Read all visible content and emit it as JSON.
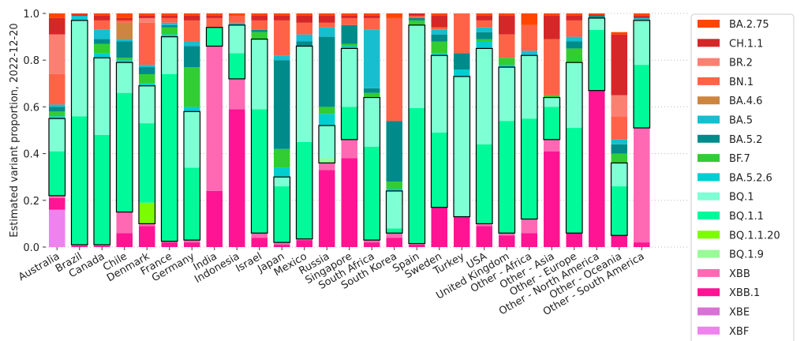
{
  "chart_data": {
    "type": "stacked_bar",
    "ylabel": "Estimated variant proportion, 2022-12-20",
    "categories": [
      "Australia",
      "Brazil",
      "Canada",
      "Chile",
      "Denmark",
      "France",
      "Germany",
      "India",
      "Indonesia",
      "Israel",
      "Japan",
      "Mexico",
      "Russia",
      "Singapore",
      "South Africa",
      "South Korea",
      "Spain",
      "Sweden",
      "Turkey",
      "USA",
      "United Kingdom",
      "Other - Africa",
      "Other - Asia",
      "Other - Europe",
      "Other - North America",
      "Other - Oceania",
      "Other - South America"
    ],
    "ylim": [
      0,
      1
    ],
    "yticks": [
      {
        "value": 0,
        "label": "0.0"
      },
      {
        "value": 0.2,
        "label": "0.2"
      },
      {
        "value": 0.4,
        "label": "0.4"
      },
      {
        "value": 0.6,
        "label": "0.6"
      },
      {
        "value": 0.8,
        "label": "0.8"
      },
      {
        "value": 1,
        "label": "1.0"
      }
    ],
    "grid": true,
    "legend": "right",
    "series": [
      {
        "name": "BA.2.75",
        "color": "#ff4500",
        "values": [
          0.02,
          0.005,
          0.01,
          0.02,
          0.01,
          0.01,
          0.01,
          0.01,
          0.01,
          0.01,
          0.01,
          0.01,
          0.01,
          0.01,
          0.01,
          0.02,
          0,
          0.01,
          0,
          0.01,
          0.01,
          0.05,
          0.01,
          0.01,
          0.005,
          0.01,
          0.01
        ]
      },
      {
        "name": "CH.1.1",
        "color": "#d62728",
        "values": [
          0.07,
          0.005,
          0.02,
          0.01,
          0.01,
          0.01,
          0.02,
          0.01,
          0,
          0.02,
          0.02,
          0.03,
          0.03,
          0.01,
          0.01,
          0,
          0.01,
          0.05,
          0,
          0.02,
          0.08,
          0,
          0.1,
          0.02,
          0.005,
          0.26,
          0.01
        ]
      },
      {
        "name": "BR.2",
        "color": "#fa8072",
        "values": [
          0.17,
          0,
          0,
          0,
          0.02,
          0,
          0,
          0,
          0,
          0,
          0,
          0,
          0,
          0,
          0,
          0,
          0,
          0,
          0,
          0,
          0,
          0,
          0,
          0,
          0,
          0.09,
          0
        ]
      },
      {
        "name": "BN.1",
        "color": "#ff6347",
        "values": [
          0.13,
          0,
          0.04,
          0.01,
          0.18,
          0.02,
          0.09,
          0.04,
          0.03,
          0.04,
          0.15,
          0.05,
          0.02,
          0.03,
          0.05,
          0.44,
          0.01,
          0.01,
          0.17,
          0.03,
          0.1,
          0.11,
          0.24,
          0.07,
          0,
          0.1,
          0
        ]
      },
      {
        "name": "BA.4.6",
        "color": "#cd853f",
        "values": [
          0,
          0,
          0,
          0.07,
          0,
          0,
          0,
          0,
          0,
          0,
          0,
          0,
          0,
          0,
          0,
          0,
          0,
          0,
          0,
          0,
          0,
          0,
          0,
          0,
          0,
          0,
          0
        ]
      },
      {
        "name": "BA.5",
        "color": "#17becf",
        "values": [
          0.01,
          0.01,
          0.04,
          0.01,
          0.01,
          0.01,
          0.02,
          0,
          0.01,
          0,
          0.02,
          0.03,
          0.04,
          0,
          0.25,
          0,
          0,
          0.02,
          0,
          0.02,
          0,
          0.02,
          0,
          0.02,
          0,
          0.02,
          0.01
        ]
      },
      {
        "name": "BA.5.2",
        "color": "#008b8b",
        "values": [
          0.02,
          0,
          0.02,
          0.07,
          0.03,
          0.01,
          0.09,
          0,
          0,
          0.01,
          0.38,
          0.02,
          0.3,
          0.08,
          0.02,
          0.26,
          0.01,
          0.03,
          0.07,
          0.03,
          0,
          0,
          0,
          0.03,
          0.01,
          0.04,
          0
        ]
      },
      {
        "name": "BF.7",
        "color": "#32cd32",
        "values": [
          0.02,
          0,
          0.04,
          0.01,
          0.04,
          0.03,
          0.17,
          0,
          0,
          0.03,
          0.08,
          0,
          0.03,
          0.01,
          0.02,
          0.03,
          0.02,
          0.05,
          0,
          0.01,
          0.03,
          0,
          0.01,
          0.06,
          0,
          0.04,
          0
        ]
      },
      {
        "name": "BA.5.2.6",
        "color": "#00ced1",
        "values": [
          0.01,
          0.01,
          0.02,
          0.01,
          0.01,
          0.01,
          0.02,
          0,
          0,
          0,
          0.04,
          0,
          0.05,
          0.01,
          0,
          0.01,
          0,
          0.01,
          0.03,
          0.03,
          0.01,
          0,
          0,
          0,
          0,
          0,
          0
        ]
      },
      {
        "name": "BQ.1",
        "color": "#7fffd4",
        "outline": true,
        "values": [
          0.14,
          0.41,
          0.33,
          0.13,
          0.16,
          0.16,
          0.24,
          0,
          0.12,
          0.3,
          0.04,
          0.41,
          0.14,
          0.25,
          0.21,
          0.16,
          0.355,
          0.33,
          0.6,
          0.41,
          0.23,
          0.27,
          0.04,
          0.28,
          0.05,
          0.1,
          0.19
        ]
      },
      {
        "name": "BQ.1.1",
        "color": "#00fa9a",
        "outline": true,
        "values": [
          0.19,
          0.55,
          0.47,
          0.51,
          0.34,
          0.715,
          0.31,
          0.08,
          0.11,
          0.53,
          0.24,
          0.415,
          0,
          0.14,
          0.4,
          0.02,
          0.58,
          0.32,
          0,
          0.34,
          0.48,
          0.43,
          0.14,
          0.45,
          0.26,
          0.21,
          0.27
        ]
      },
      {
        "name": "BQ.1.1.20",
        "color": "#7cfc00",
        "outline": true,
        "values": [
          0,
          0,
          0,
          0,
          0.09,
          0,
          0,
          0,
          0,
          0,
          0,
          0,
          0,
          0,
          0,
          0,
          0,
          0,
          0,
          0,
          0,
          0,
          0,
          0,
          0,
          0,
          0
        ]
      },
      {
        "name": "BQ.1.9",
        "color": "#98fb98",
        "outline": true,
        "values": [
          0,
          0,
          0,
          0,
          0,
          0,
          0,
          0,
          0,
          0,
          0,
          0,
          0.02,
          0,
          0,
          0,
          0,
          0,
          0,
          0,
          0,
          0,
          0,
          0,
          0,
          0,
          0
        ]
      },
      {
        "name": "XBB",
        "color": "#ff69b4",
        "values": [
          0.01,
          0.005,
          0.005,
          0.09,
          0.01,
          0.005,
          0.01,
          0.62,
          0.13,
          0.02,
          0.01,
          0.005,
          0.03,
          0.08,
          0.01,
          0.02,
          0.005,
          0,
          0,
          0.01,
          0.01,
          0.06,
          0.05,
          0,
          0,
          0,
          0.49
        ]
      },
      {
        "name": "XBB.1",
        "color": "#ff1493",
        "values": [
          0.05,
          0.005,
          0.005,
          0.06,
          0.09,
          0.02,
          0.02,
          0.24,
          0.59,
          0.04,
          0.01,
          0.03,
          0.33,
          0.38,
          0.02,
          0.04,
          0.01,
          0.17,
          0.13,
          0.09,
          0.05,
          0.06,
          0.41,
          0.06,
          0.67,
          0.05,
          0.02
        ]
      },
      {
        "name": "XBE",
        "color": "#da70d6",
        "values": [
          0,
          0,
          0,
          0,
          0,
          0,
          0,
          0,
          0,
          0,
          0,
          0,
          0,
          0,
          0,
          0,
          0,
          0,
          0,
          0,
          0,
          0,
          0,
          0,
          0,
          0,
          0
        ]
      },
      {
        "name": "XBF",
        "color": "#ee82ee",
        "values": [
          0.16,
          0,
          0,
          0,
          0,
          0,
          0,
          0,
          0,
          0,
          0,
          0,
          0,
          0,
          0,
          0,
          0,
          0,
          0,
          0,
          0,
          0,
          0,
          0,
          0,
          0,
          0
        ]
      }
    ]
  }
}
